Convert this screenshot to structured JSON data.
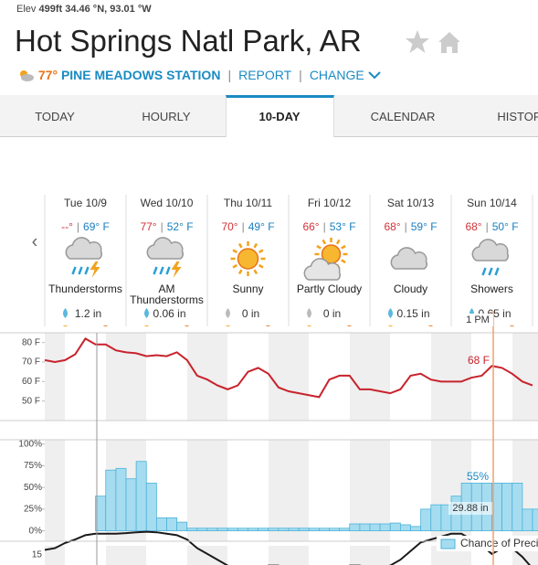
{
  "header": {
    "elev_label": "Elev",
    "elevation": "499ft",
    "coordinates": "34.46 °N, 93.01 °W",
    "title": "Hot Springs Natl Park, AR",
    "current_temp": "77°",
    "station": "PINE MEADOWS STATION",
    "links": [
      "REPORT",
      "CHANGE"
    ]
  },
  "tabs": [
    "TODAY",
    "HOURLY",
    "10-DAY",
    "CALENDAR",
    "HISTORY"
  ],
  "forecast": {
    "days": [
      {
        "date": "Tue 10/9",
        "high": "--°",
        "low": "69° F",
        "condition": "Thunderstorms",
        "precip": "1.2 in"
      },
      {
        "date": "Wed 10/10",
        "high": "77°",
        "low": "52° F",
        "condition": "AM Thunderstorms",
        "precip": "0.06 in"
      },
      {
        "date": "Thu 10/11",
        "high": "70°",
        "low": "49° F",
        "condition": "Sunny",
        "precip": "0 in"
      },
      {
        "date": "Fri 10/12",
        "high": "66°",
        "low": "53° F",
        "condition": "Partly Cloudy",
        "precip": "0 in"
      },
      {
        "date": "Sat 10/13",
        "high": "68°",
        "low": "59° F",
        "condition": "Cloudy",
        "precip": "0.15 in"
      },
      {
        "date": "Sun 10/14",
        "high": "68°",
        "low": "50° F",
        "condition": "Showers",
        "precip": "0.65 in"
      }
    ],
    "crosshair_time": "1 PM"
  },
  "temperature_chart": {
    "type": "line",
    "color": "#c8232c",
    "ylim": [
      40,
      85
    ],
    "yticks": [
      {
        "value": 80,
        "label": "80 F"
      },
      {
        "value": 70,
        "label": "70 F"
      },
      {
        "value": 60,
        "label": "60 F"
      },
      {
        "value": 50,
        "label": "50 F"
      }
    ],
    "values": [
      71,
      70,
      71,
      74,
      82,
      79,
      79,
      76,
      75,
      74.5,
      73,
      73.5,
      73,
      75,
      71,
      63,
      61,
      58,
      56,
      58,
      65,
      67,
      64,
      57,
      55,
      54,
      53,
      52,
      61,
      63,
      63,
      56,
      56,
      55,
      54,
      56,
      63,
      64,
      61,
      60,
      60,
      60,
      62,
      63,
      68,
      67,
      64,
      60,
      58
    ],
    "readout": "68 F"
  },
  "precipitation_chart": {
    "type": "bar",
    "ylim": [
      -12,
      105
    ],
    "yticks": [
      {
        "value": 100,
        "label": "100%"
      },
      {
        "value": 75,
        "label": "75%"
      },
      {
        "value": 50,
        "label": "50%"
      },
      {
        "value": 25,
        "label": "25%"
      },
      {
        "value": 0,
        "label": "0%"
      }
    ],
    "series": [
      {
        "name": "Chance of Precip.",
        "color": "#a6dcf0",
        "values": [
          0,
          0,
          0,
          0,
          0,
          40,
          70,
          72,
          60,
          80,
          55,
          15,
          15,
          10,
          3,
          3,
          3,
          3,
          3,
          3,
          3,
          3,
          3,
          3,
          3,
          3,
          3,
          3,
          3,
          3,
          8,
          8,
          8,
          8,
          9,
          7,
          5,
          25,
          30,
          30,
          40,
          55,
          55,
          55,
          55,
          55,
          55,
          25,
          25
        ]
      },
      {
        "color": "#1a1a1a",
        "axis": "y2",
        "values": [
          29.866,
          29.86,
          29.842,
          29.83,
          29.815,
          29.81,
          29.81,
          29.81,
          29.808,
          29.805,
          29.803,
          29.805,
          29.81,
          29.815,
          29.83,
          29.86,
          29.88,
          29.9,
          29.92,
          29.94,
          29.96,
          29.95,
          29.92,
          29.92,
          29.94,
          29.95,
          29.95,
          29.96,
          29.97,
          29.95,
          29.92,
          29.92,
          29.93,
          29.93,
          29.92,
          29.9,
          29.87,
          29.84,
          29.83,
          29.82,
          29.81,
          29.81,
          29.83,
          29.85,
          29.88,
          29.86,
          29.86,
          29.89,
          29.93
        ]
      }
    ],
    "y2lim": [
      29.8,
      30.1
    ],
    "readouts": {
      "precip": "55%",
      "pressure": "29.88 in"
    }
  },
  "next_panel": {
    "tick": "15"
  }
}
